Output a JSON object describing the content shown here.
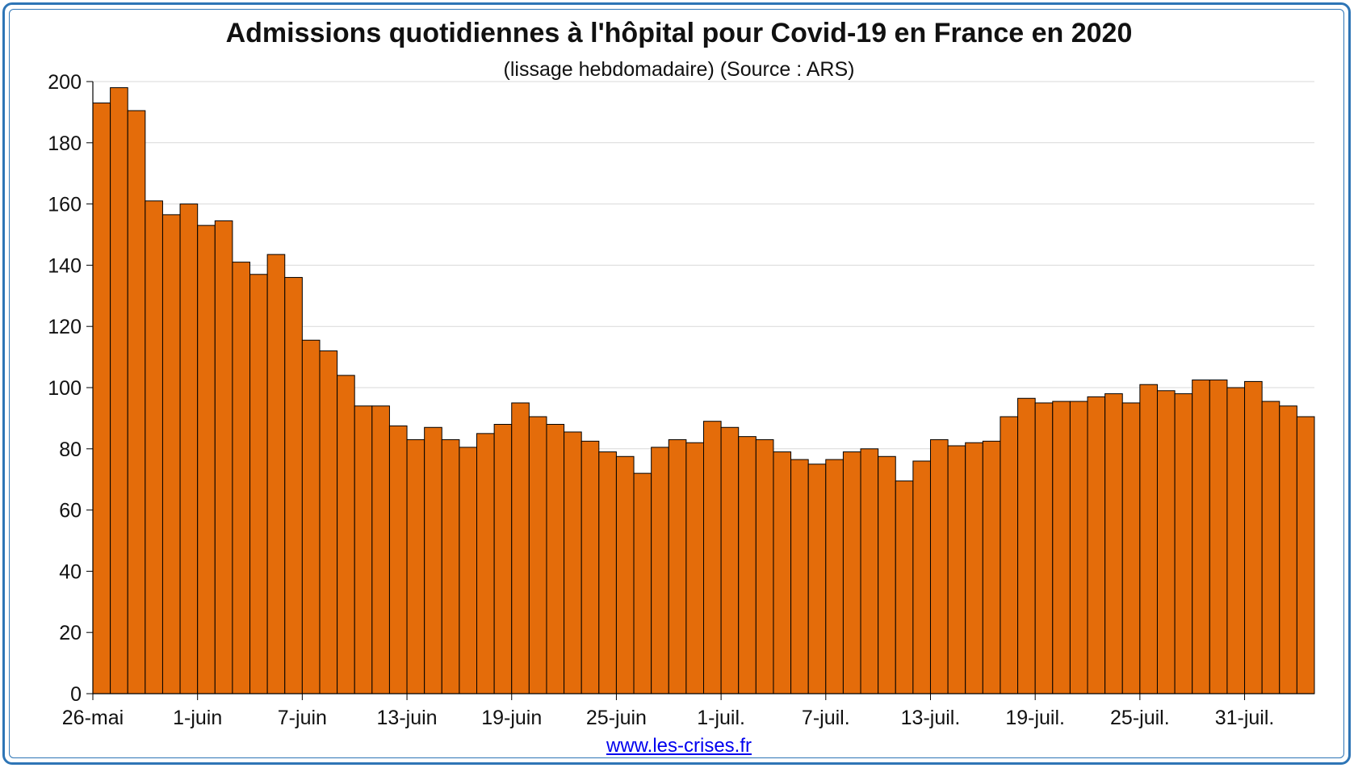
{
  "header": {
    "title": "Admissions quotidiennes à l'hôpital pour Covid-19 en France en 2020",
    "subtitle": "(lissage hebdomadaire) (Source : ARS)"
  },
  "footer": {
    "link_text": "www.les-crises.fr"
  },
  "colors": {
    "bar_fill": "#e46c0a",
    "bar_stroke": "#000000",
    "grid": "#d9d9d9",
    "frame": "#2e75b6",
    "link": "#0000ee"
  },
  "chart_data": {
    "type": "bar",
    "title": "Admissions quotidiennes à l'hôpital pour Covid-19 en France en 2020",
    "subtitle": "(lissage hebdomadaire) (Source : ARS)",
    "xlabel": "",
    "ylabel": "",
    "ylim": [
      0,
      200
    ],
    "yticks": [
      0,
      20,
      40,
      60,
      80,
      100,
      120,
      140,
      160,
      180,
      200
    ],
    "grid": true,
    "legend": "none",
    "x_tick_labels": [
      "26-mai",
      "1-juin",
      "7-juin",
      "13-juin",
      "19-juin",
      "25-juin",
      "1-juil.",
      "7-juil.",
      "13-juil.",
      "19-juil.",
      "25-juil.",
      "31-juil."
    ],
    "x_tick_every": 6,
    "categories": [
      "26-mai",
      "27-mai",
      "28-mai",
      "29-mai",
      "30-mai",
      "31-mai",
      "1-juin",
      "2-juin",
      "3-juin",
      "4-juin",
      "5-juin",
      "6-juin",
      "7-juin",
      "8-juin",
      "9-juin",
      "10-juin",
      "11-juin",
      "12-juin",
      "13-juin",
      "14-juin",
      "15-juin",
      "16-juin",
      "17-juin",
      "18-juin",
      "19-juin",
      "20-juin",
      "21-juin",
      "22-juin",
      "23-juin",
      "24-juin",
      "25-juin",
      "26-juin",
      "27-juin",
      "28-juin",
      "29-juin",
      "30-juin",
      "1-juil.",
      "2-juil.",
      "3-juil.",
      "4-juil.",
      "5-juil.",
      "6-juil.",
      "7-juil.",
      "8-juil.",
      "9-juil.",
      "10-juil.",
      "11-juil.",
      "12-juil.",
      "13-juil.",
      "14-juil.",
      "15-juil.",
      "16-juil.",
      "17-juil.",
      "18-juil.",
      "19-juil.",
      "20-juil.",
      "21-juil.",
      "22-juil.",
      "23-juil.",
      "24-juil.",
      "25-juil.",
      "26-juil.",
      "27-juil.",
      "28-juil.",
      "29-juil.",
      "30-juil.",
      "31-juil.",
      "1-août",
      "2-août",
      "3-août"
    ],
    "series": [
      {
        "values": [
          193,
          198,
          190.5,
          161,
          156.5,
          160,
          153,
          154.5,
          141,
          137,
          143.5,
          136,
          115.5,
          112,
          104,
          94,
          94,
          87.5,
          83,
          87,
          83,
          80.5,
          85,
          88,
          95,
          90.5,
          88,
          85.5,
          82.5,
          79,
          77.5,
          72,
          80.5,
          83,
          82,
          89,
          87,
          84,
          83,
          79,
          76.5,
          75,
          76.5,
          79,
          80,
          77.5,
          69.5,
          76,
          83,
          81,
          82,
          82.5,
          90.5,
          96.5,
          95,
          95.5,
          95.5,
          97,
          98,
          95,
          101,
          99,
          98,
          102.5,
          102.5,
          100,
          102,
          95.5,
          94,
          90.5
        ]
      }
    ]
  }
}
